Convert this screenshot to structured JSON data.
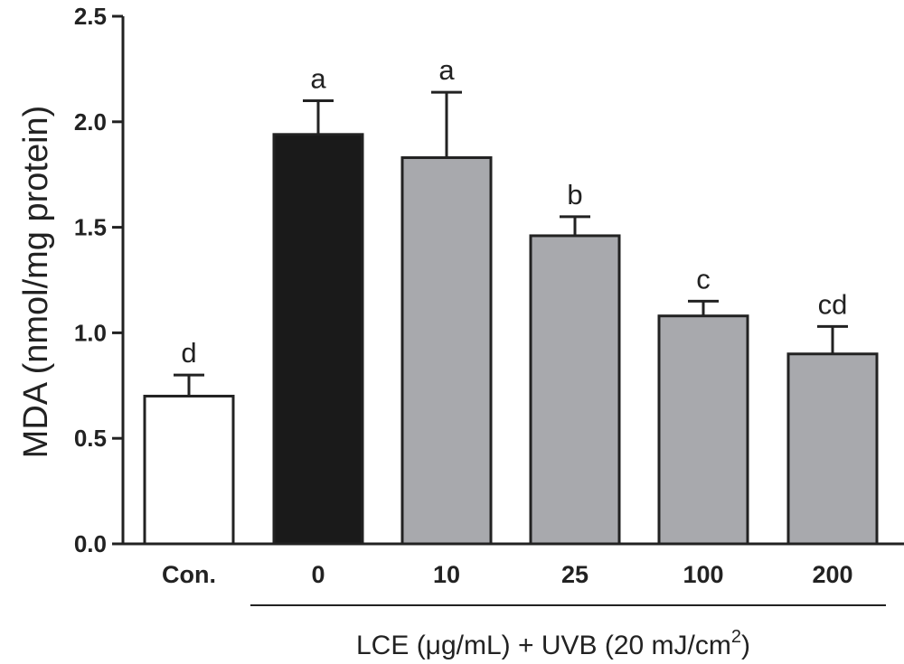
{
  "chart_data": {
    "type": "bar",
    "categories": [
      "Con.",
      "0",
      "10",
      "25",
      "100",
      "200"
    ],
    "values": [
      0.7,
      1.94,
      1.83,
      1.46,
      1.08,
      0.9
    ],
    "errors": [
      0.1,
      0.16,
      0.31,
      0.09,
      0.07,
      0.13
    ],
    "significance": [
      "d",
      "a",
      "a",
      "b",
      "c",
      "cd"
    ],
    "bar_colors": [
      "#ffffff",
      "#1a1a1a",
      "#a8a9ad",
      "#a8a9ad",
      "#a8a9ad",
      "#a8a9ad"
    ],
    "ylabel": "MDA (nmol/mg protein)",
    "ylim": [
      0,
      2.5
    ],
    "yticks": [
      0.0,
      0.5,
      1.0,
      1.5,
      2.0,
      2.5
    ],
    "ytick_labels": [
      "0.0",
      "0.5",
      "1.0",
      "1.5",
      "2.0",
      "2.5"
    ],
    "group_label": {
      "main": "LCE (μg/mL) + UVB (20 mJ/cm",
      "superscript": "2",
      "close": ")"
    },
    "grid": false
  }
}
